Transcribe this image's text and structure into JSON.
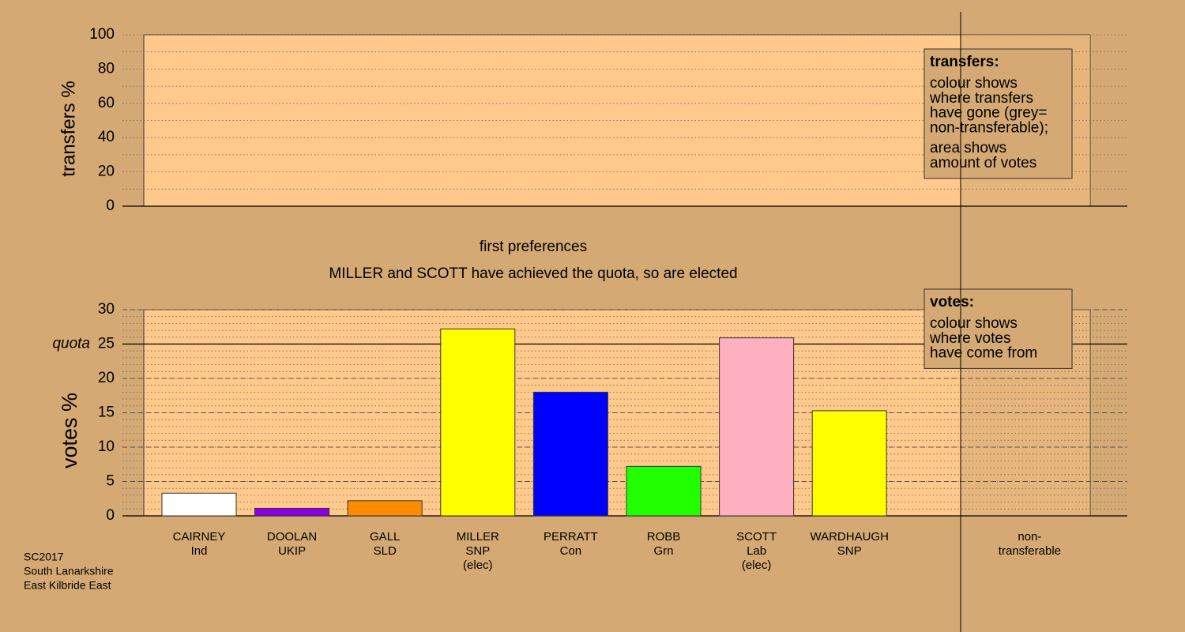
{
  "chart_data": [
    {
      "type": "bar",
      "ylabel": "transfers %",
      "ylim": [
        0,
        100
      ],
      "yticks": [
        0,
        20,
        40,
        60,
        80,
        100
      ],
      "minor_yticks": [
        0,
        10,
        20,
        30,
        40,
        50,
        60,
        70,
        80,
        90,
        100
      ],
      "grid": true,
      "note": {
        "heading": "transfers:",
        "paragraphs": [
          [
            "colour shows",
            "where transfers",
            "have gone (grey=",
            "non-transferable);"
          ],
          [
            "area shows",
            "amount of votes"
          ]
        ]
      }
    },
    {
      "type": "bar",
      "title": "first preferences",
      "subtitle": "MILLER and SCOTT have achieved the quota, so are elected",
      "ylabel": "votes %",
      "categories": [
        [
          "CAIRNEY",
          "Ind"
        ],
        [
          "DOOLAN",
          "UKIP"
        ],
        [
          "GALL",
          "SLD"
        ],
        [
          "MILLER",
          "SNP",
          "(elec)"
        ],
        [
          "PERRATT",
          "Con"
        ],
        [
          "ROBB",
          "Grn"
        ],
        [
          "SCOTT",
          "Lab",
          "(elec)"
        ],
        [
          "WARDHAUGH",
          "SNP"
        ],
        [
          "non-",
          "transferable"
        ]
      ],
      "values": [
        3.3,
        1.1,
        2.2,
        27.2,
        18.0,
        7.2,
        25.9,
        15.3,
        null
      ],
      "colors": [
        "#ffffff",
        "#8a00e0",
        "#ff8c00",
        "#ffff00",
        "#0000ff",
        "#22ff00",
        "#ffb0c0",
        "#ffff00",
        null
      ],
      "ylim": [
        0,
        30
      ],
      "yticks": [
        0,
        5,
        10,
        15,
        20,
        25,
        30
      ],
      "minor_yticks": [
        0,
        1,
        2,
        3,
        4,
        5,
        6,
        7,
        8,
        9,
        10,
        11,
        12,
        13,
        14,
        15,
        16,
        17,
        18,
        19,
        20,
        21,
        22,
        23,
        24,
        25,
        26,
        27,
        28,
        29,
        30
      ],
      "grid": true,
      "quota": {
        "value": 25,
        "label": "quota"
      },
      "note": {
        "heading": "votes:",
        "paragraphs": [
          [
            "colour shows",
            "where votes",
            "have come from"
          ]
        ]
      }
    }
  ],
  "source": [
    "SC2017",
    "South Lanarkshire",
    "East Kilbride East"
  ]
}
